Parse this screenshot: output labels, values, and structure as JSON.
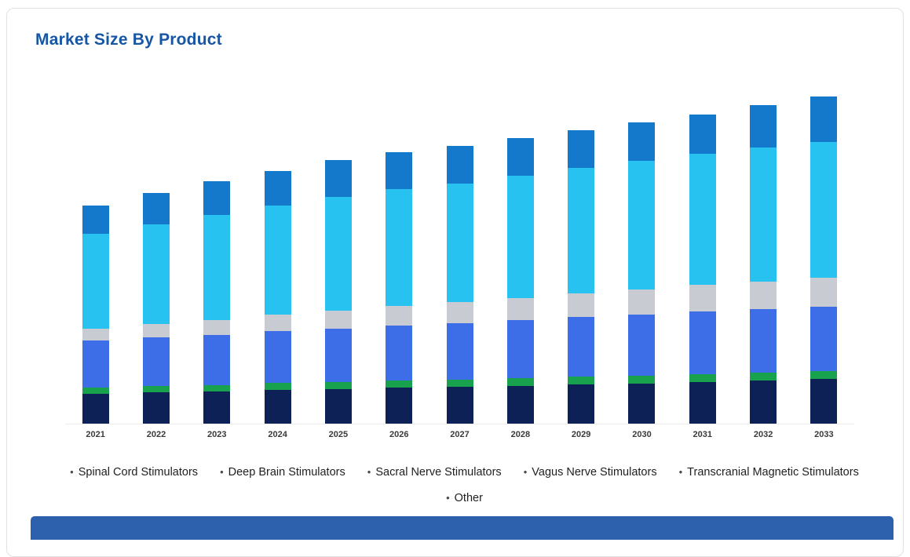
{
  "card": {
    "title": "Market Size By Product"
  },
  "chart_data": {
    "type": "bar",
    "stacked": true,
    "title": "Market Size By Product",
    "xlabel": "",
    "ylabel": "",
    "ylim": [
      0,
      45
    ],
    "grid": false,
    "legend_position": "bottom",
    "legend_bullet": "•",
    "categories": [
      "2021",
      "2022",
      "2023",
      "2024",
      "2025",
      "2026",
      "2027",
      "2028",
      "2029",
      "2030",
      "2031",
      "2032",
      "2033"
    ],
    "series": [
      {
        "name": "Spinal Cord Stimulators",
        "color": "#0d2157",
        "values": [
          3.8,
          4.0,
          4.1,
          4.3,
          4.4,
          4.6,
          4.7,
          4.8,
          5.0,
          5.1,
          5.3,
          5.5,
          5.7
        ]
      },
      {
        "name": "Deep Brain Stimulators",
        "color": "#18a24e",
        "values": [
          0.8,
          0.8,
          0.8,
          0.9,
          0.9,
          0.9,
          0.9,
          1.0,
          1.0,
          1.0,
          1.0,
          1.0,
          1.0
        ]
      },
      {
        "name": "Sacral Nerve Stimulators",
        "color": "#3e6de8",
        "values": [
          6.0,
          6.2,
          6.4,
          6.6,
          6.8,
          7.0,
          7.2,
          7.4,
          7.6,
          7.8,
          8.0,
          8.1,
          8.2
        ]
      },
      {
        "name": "Vagus Nerve Stimulators",
        "color": "#c8ccd2",
        "values": [
          1.5,
          1.7,
          1.9,
          2.1,
          2.3,
          2.5,
          2.7,
          2.8,
          3.0,
          3.2,
          3.4,
          3.5,
          3.7
        ]
      },
      {
        "name": "Transcranial Magnetic Stimulators",
        "color": "#27c2f0",
        "values": [
          12.2,
          12.8,
          13.5,
          14.0,
          14.6,
          15.0,
          15.2,
          15.7,
          16.1,
          16.5,
          16.8,
          17.2,
          17.4
        ]
      },
      {
        "name": "Other",
        "color": "#1478cb",
        "values": [
          3.6,
          4.0,
          4.3,
          4.4,
          4.7,
          4.7,
          4.8,
          4.8,
          4.8,
          4.9,
          5.0,
          5.4,
          5.8
        ]
      }
    ],
    "next_section_bar_color": "#2d61ad"
  }
}
